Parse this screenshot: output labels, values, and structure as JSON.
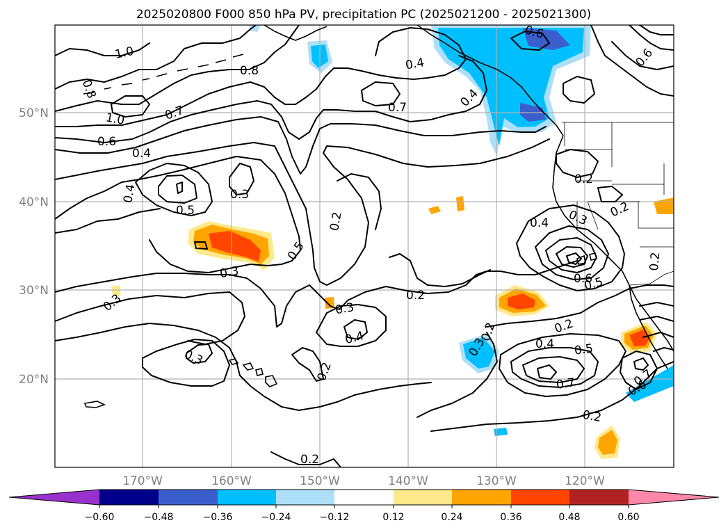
{
  "figure": {
    "title": "2025020800 F000 850 hPa PV, precipitation PC (2025021200 - 2025021300)"
  },
  "axes": {
    "lon_labels": [
      "170°W",
      "160°W",
      "150°W",
      "140°W",
      "130°W",
      "120°W"
    ],
    "lat_labels": [
      "50°N",
      "40°N",
      "30°N",
      "20°N"
    ],
    "gridlines": true
  },
  "colorbar": {
    "orientation": "horizontal",
    "extend": "both",
    "tick_labels": [
      "−0.60",
      "−0.48",
      "−0.36",
      "−0.24",
      "−0.12",
      "0.12",
      "0.24",
      "0.36",
      "0.48",
      "0.60"
    ],
    "colors": [
      "#9932CC",
      "#00008B",
      "#3A5FCD",
      "#00BFFF",
      "#ADDFF8",
      "#FFFFFF",
      "#FDE98A",
      "#FFA500",
      "#FF4500",
      "#B22222",
      "#FF88AA"
    ]
  },
  "contour_labels": [
    {
      "text": "1.0"
    },
    {
      "text": "0.8"
    },
    {
      "text": "0.8"
    },
    {
      "text": "1.0"
    },
    {
      "text": "0.7"
    },
    {
      "text": "0.6"
    },
    {
      "text": "0.4"
    },
    {
      "text": "0.4"
    },
    {
      "text": "0.5"
    },
    {
      "text": "0.3"
    },
    {
      "text": "0.5"
    },
    {
      "text": "0.3"
    },
    {
      "text": "0.2"
    },
    {
      "text": "0.4"
    },
    {
      "text": "0.7"
    },
    {
      "text": "0.4"
    },
    {
      "text": "0.6"
    },
    {
      "text": "0.6"
    },
    {
      "text": "0.3"
    },
    {
      "text": "0.3"
    },
    {
      "text": "0.4"
    },
    {
      "text": "0.2"
    },
    {
      "text": "0.3"
    },
    {
      "text": "0.2"
    },
    {
      "text": "0.2"
    },
    {
      "text": "0.4"
    },
    {
      "text": "0.3"
    },
    {
      "text": "0.2"
    },
    {
      "text": "0.2"
    },
    {
      "text": "0.6"
    },
    {
      "text": "0.5"
    },
    {
      "text": "0.2"
    },
    {
      "text": "0.4"
    },
    {
      "text": "0.5"
    },
    {
      "text": "0.7"
    },
    {
      "text": "0.2"
    },
    {
      "text": "0.6"
    },
    {
      "text": "0.7"
    },
    {
      "text": "0.2"
    },
    {
      "text": "0.2"
    },
    {
      "text": "0.3"
    }
  ]
}
